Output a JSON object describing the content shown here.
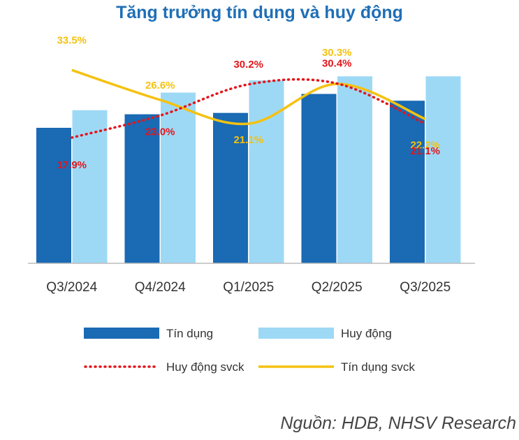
{
  "title": "Tăng trưởng tín dụng và huy động",
  "source": "Nguồn: HDB, NHSV Research",
  "colors": {
    "credit": "#1a6ab4",
    "deposit": "#9dd9f5",
    "deposit_yoy": "#e3151b",
    "credit_yoy": "#f4c211"
  },
  "chart_data": {
    "type": "bar",
    "categories": [
      "Q3/2024",
      "Q4/2024",
      "Q1/2025",
      "Q2/2025",
      "Q3/2025"
    ],
    "series": [
      {
        "name": "Tín dụng",
        "type": "bar",
        "values": [
          100,
          110,
          111,
          125,
          120
        ]
      },
      {
        "name": "Huy động",
        "type": "bar",
        "values": [
          113,
          126,
          135,
          138,
          138
        ]
      },
      {
        "name": "Huy động svck",
        "type": "line",
        "style": "dotted",
        "values": [
          17.9,
          23.0,
          30.2,
          30.4,
          21.1
        ],
        "labels": [
          "17.9%",
          "23.0%",
          "30.2%",
          "30.4%",
          "21.1%"
        ]
      },
      {
        "name": "Tín dụng svck",
        "type": "line",
        "style": "solid",
        "values": [
          33.5,
          26.6,
          21.1,
          30.3,
          22.2
        ],
        "labels": [
          "33.5%",
          "26.6%",
          "21.1%",
          "30.3%",
          "22.2%"
        ]
      }
    ],
    "legend": "bottom",
    "grid": false
  }
}
